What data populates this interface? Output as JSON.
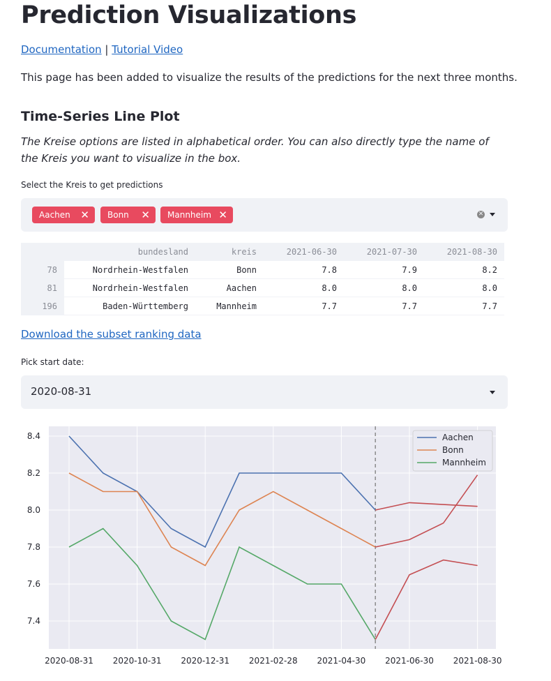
{
  "page": {
    "title": "Prediction Visualizations",
    "links": {
      "documentation": "Documentation",
      "separator": "|",
      "tutorial": "Tutorial Video"
    },
    "intro": "This page has been added to visualize the results of the predictions for the next three months."
  },
  "section": {
    "heading": "Time-Series Line Plot",
    "note": "The Kreise options are listed in alphabetical order. You can also directly type the name of the Kreis you want to visualize in the box."
  },
  "kreis_select": {
    "label": "Select the Kreis to get predictions",
    "selected": [
      "Aachen",
      "Bonn",
      "Mannheim"
    ],
    "remove_glyph": "✕",
    "clear_glyph": "✕"
  },
  "table": {
    "headers": [
      "",
      "bundesland",
      "kreis",
      "2021-06-30",
      "2021-07-30",
      "2021-08-30"
    ],
    "rows": [
      [
        "78",
        "Nordrhein-Westfalen",
        "Bonn",
        "7.8",
        "7.9",
        "8.2"
      ],
      [
        "81",
        "Nordrhein-Westfalen",
        "Aachen",
        "8.0",
        "8.0",
        "8.0"
      ],
      [
        "196",
        "Baden-Württemberg",
        "Mannheim",
        "7.7",
        "7.7",
        "7.7"
      ]
    ]
  },
  "download_link": "Download the subset ranking data",
  "start_date": {
    "label": "Pick start date:",
    "value": "2020-08-31"
  },
  "colors": {
    "aachen": "#4c72b0",
    "bonn": "#dd8452",
    "mannheim": "#55a868",
    "prediction": "#c44e52",
    "tag": "#e84a5f",
    "link": "#1f66c1"
  },
  "chart_data": {
    "type": "line",
    "x": [
      "2020-08-31",
      "2020-09-30",
      "2020-10-31",
      "2020-11-30",
      "2020-12-31",
      "2021-01-31",
      "2021-02-28",
      "2021-03-31",
      "2021-04-30",
      "2021-05-31",
      "2021-06-30",
      "2021-07-30",
      "2021-08-30"
    ],
    "xticks": [
      "2020-08-31",
      "2020-10-31",
      "2020-12-31",
      "2021-02-28",
      "2021-04-30",
      "2021-06-30",
      "2021-08-30"
    ],
    "yticks": [
      "7.4",
      "7.6",
      "7.8",
      "8.0",
      "8.2",
      "8.4"
    ],
    "ylim": [
      7.28,
      8.45
    ],
    "vline_x": "2021-05-31",
    "legend_position": "top-right",
    "series": [
      {
        "name": "Aachen",
        "actual": [
          8.4,
          8.2,
          8.1,
          7.9,
          7.8,
          8.2,
          8.2,
          8.2,
          8.2,
          8.0
        ],
        "predicted": [
          8.0,
          8.04,
          8.03,
          8.02
        ]
      },
      {
        "name": "Bonn",
        "actual": [
          8.2,
          8.1,
          8.1,
          7.8,
          7.7,
          8.0,
          8.1,
          8.0,
          7.9,
          7.8
        ],
        "predicted": [
          7.8,
          7.84,
          7.93,
          8.19
        ]
      },
      {
        "name": "Mannheim",
        "actual": [
          7.8,
          7.9,
          7.7,
          7.4,
          7.3,
          7.8,
          7.7,
          7.6,
          7.6,
          7.3
        ],
        "predicted": [
          7.3,
          7.65,
          7.73,
          7.7
        ]
      }
    ]
  }
}
